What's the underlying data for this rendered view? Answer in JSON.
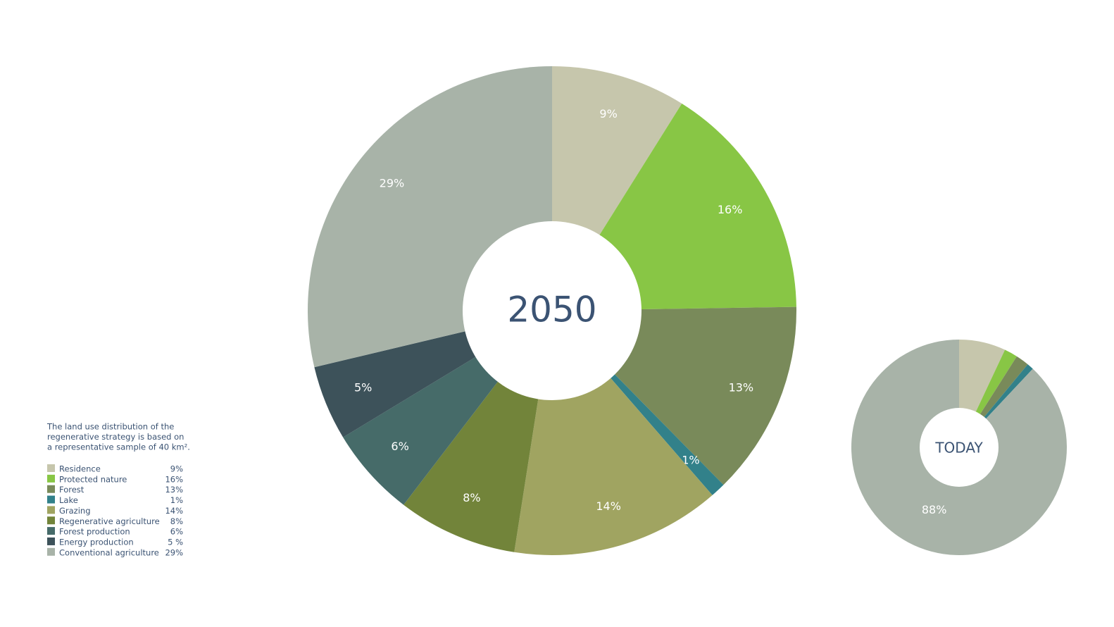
{
  "chart_data": [
    {
      "type": "donut",
      "center_label": "2050",
      "categories": [
        "Residence",
        "Protected nature",
        "Forest",
        "Lake",
        "Grazing",
        "Regenerative agriculture",
        "Forest production",
        "Energy production",
        "Conventional agriculture"
      ],
      "values": [
        9,
        16,
        13,
        1,
        14,
        8,
        6,
        5,
        29
      ],
      "value_labels": [
        "9%",
        "16%",
        "13%",
        "1%",
        "14%",
        "8%",
        "6%",
        "5%",
        "29%"
      ],
      "legend_value_labels": [
        "9%",
        "16%",
        "13%",
        "1%",
        "14%",
        "8%",
        "6%",
        "5 %",
        "29%"
      ],
      "colors": [
        "#c6c6ac",
        "#88c645",
        "#798a5a",
        "#32818a",
        "#a0a461",
        "#72843a",
        "#466b69",
        "#3d525a",
        "#a8b3a8"
      ],
      "note": [
        "The land use distribution of the",
        "regenerative strategy is based on",
        "a representative sample of 40 km²."
      ]
    },
    {
      "type": "donut",
      "center_label": "TODAY",
      "categories": [
        "Residence",
        "Protected nature",
        "Forest",
        "Lake",
        "Conventional agriculture"
      ],
      "values": [
        7,
        2,
        2,
        1,
        88
      ],
      "value_labels": [
        null,
        null,
        null,
        null,
        "88%"
      ],
      "colors": [
        "#c6c6ac",
        "#88c645",
        "#798a5a",
        "#32818a",
        "#a8b3a8"
      ]
    }
  ]
}
